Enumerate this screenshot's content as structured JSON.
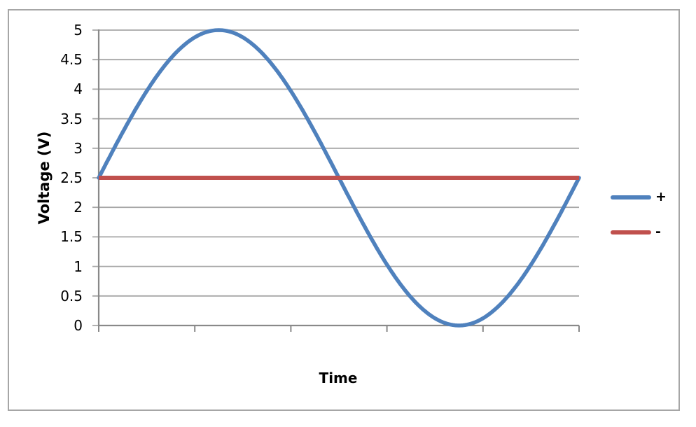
{
  "style": {
    "grid_color": "#a6a6a6",
    "axis_color": "#898989",
    "border_color": "#a6a6a6",
    "text_color": "#000000",
    "background": "#ffffff"
  },
  "chart_data": {
    "type": "line",
    "title": "",
    "xlabel": "Time",
    "ylabel": "Voltage (V)",
    "ylim": [
      0,
      5
    ],
    "yticks": [
      0,
      0.5,
      1,
      1.5,
      2,
      2.5,
      3,
      3.5,
      4,
      4.5,
      5
    ],
    "ytick_labels": [
      "0",
      "0.5",
      "1",
      "1.5",
      "2",
      "2.5",
      "3",
      "3.5",
      "4",
      "4.5",
      "5"
    ],
    "x_tick_count": 5,
    "x_ticks_labeled": false,
    "grid": true,
    "legend_position": "right",
    "series": [
      {
        "name": "+",
        "color": "#4f81bd",
        "shape": "sine",
        "midline": 2.5,
        "amplitude": 2.5,
        "cycles": 1,
        "description": "One full sine cycle over the x-range: starts at 2.5 V, peaks at 5 V at 1/4 period, crosses 2.5 V at midpoint, reaches 0 V at 3/4 period, returns to 2.5 V",
        "samples_x_fraction": [
          0,
          0.125,
          0.25,
          0.375,
          0.5,
          0.625,
          0.75,
          0.875,
          1
        ],
        "samples_y": [
          2.5,
          4.27,
          5,
          4.27,
          2.5,
          0.73,
          0,
          0.73,
          2.5
        ]
      },
      {
        "name": "-",
        "color": "#c0504d",
        "shape": "constant",
        "value": 2.5,
        "description": "Horizontal line at 2.5 V across the full x-range"
      }
    ]
  },
  "legend": {
    "items": [
      {
        "label": "+"
      },
      {
        "label": "-"
      }
    ]
  }
}
